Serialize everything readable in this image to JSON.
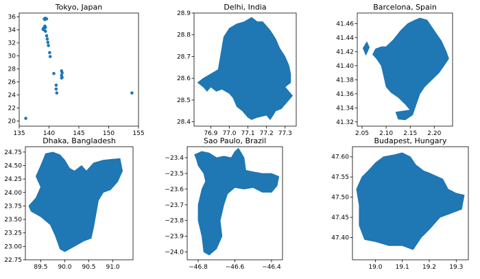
{
  "figure": {
    "colors": {
      "fill": "#1f77b4",
      "axes": "#000000",
      "background": "#ffffff"
    },
    "panels": [
      {
        "title": "Tokyo, Japan",
        "type": "scatter",
        "xlim": [
          135,
          155
        ],
        "ylim": [
          19.2,
          36.6
        ],
        "xticks": [
          135,
          140,
          145,
          150,
          155
        ],
        "yticks": [
          20,
          22,
          24,
          26,
          28,
          30,
          32,
          34,
          36
        ],
        "points": [
          [
            139.2,
            35.7
          ],
          [
            139.4,
            35.8
          ],
          [
            139.6,
            35.7
          ],
          [
            139.3,
            35.6
          ],
          [
            139.1,
            34.3
          ],
          [
            139.2,
            34.0
          ],
          [
            139.3,
            34.6
          ],
          [
            139.0,
            34.1
          ],
          [
            139.4,
            34.4
          ],
          [
            139.4,
            33.8
          ],
          [
            139.6,
            33.1
          ],
          [
            139.7,
            32.6
          ],
          [
            139.8,
            32.1
          ],
          [
            139.9,
            31.6
          ],
          [
            140.1,
            30.5
          ],
          [
            140.2,
            29.9
          ],
          [
            140.8,
            27.3
          ],
          [
            141.2,
            25.5
          ],
          [
            141.2,
            24.9
          ],
          [
            141.3,
            24.3
          ],
          [
            142.1,
            27.7
          ],
          [
            142.2,
            27.4
          ],
          [
            142.1,
            27.0
          ],
          [
            142.2,
            26.7
          ],
          [
            142.1,
            26.6
          ],
          [
            153.9,
            24.3
          ],
          [
            136.1,
            20.4
          ]
        ]
      },
      {
        "title": "Delhi, India",
        "type": "map",
        "xlim": [
          76.81,
          77.36
        ],
        "ylim": [
          28.38,
          28.9
        ],
        "xticks": [
          76.9,
          77.0,
          77.1,
          77.2,
          77.3
        ],
        "yticks": [
          28.4,
          28.5,
          28.6,
          28.7,
          28.8,
          28.9
        ],
        "polygons": [
          [
            [
              76.83,
              28.58
            ],
            [
              76.86,
              28.56
            ],
            [
              76.88,
              28.54
            ],
            [
              76.9,
              28.56
            ],
            [
              76.93,
              28.54
            ],
            [
              76.96,
              28.55
            ],
            [
              77.0,
              28.53
            ],
            [
              77.02,
              28.51
            ],
            [
              77.04,
              28.47
            ],
            [
              77.07,
              28.45
            ],
            [
              77.1,
              28.42
            ],
            [
              77.12,
              28.41
            ],
            [
              77.15,
              28.42
            ],
            [
              77.2,
              28.43
            ],
            [
              77.22,
              28.41
            ],
            [
              77.25,
              28.45
            ],
            [
              77.28,
              28.46
            ],
            [
              77.3,
              28.48
            ],
            [
              77.34,
              28.52
            ],
            [
              77.3,
              28.56
            ],
            [
              77.33,
              28.58
            ],
            [
              77.33,
              28.62
            ],
            [
              77.32,
              28.66
            ],
            [
              77.3,
              28.7
            ],
            [
              77.27,
              28.74
            ],
            [
              77.25,
              28.78
            ],
            [
              77.22,
              28.82
            ],
            [
              77.18,
              28.86
            ],
            [
              77.15,
              28.86
            ],
            [
              77.12,
              28.88
            ],
            [
              77.08,
              28.86
            ],
            [
              77.04,
              28.85
            ],
            [
              77.0,
              28.83
            ],
            [
              76.97,
              28.79
            ],
            [
              76.96,
              28.74
            ],
            [
              76.95,
              28.69
            ],
            [
              76.94,
              28.64
            ],
            [
              76.9,
              28.62
            ],
            [
              76.86,
              28.6
            ]
          ]
        ]
      },
      {
        "title": "Barcelona, Spain",
        "type": "map",
        "xlim": [
          2.04,
          2.238
        ],
        "ylim": [
          41.314,
          41.475
        ],
        "xticks": [
          2.05,
          2.1,
          2.15,
          2.2
        ],
        "yticks": [
          41.32,
          41.34,
          41.36,
          41.38,
          41.4,
          41.42,
          41.44,
          41.46
        ],
        "polygons": [
          [
            [
              2.072,
              41.416
            ],
            [
              2.078,
              41.424
            ],
            [
              2.09,
              41.427
            ],
            [
              2.1,
              41.427
            ],
            [
              2.115,
              41.437
            ],
            [
              2.13,
              41.45
            ],
            [
              2.145,
              41.46
            ],
            [
              2.16,
              41.465
            ],
            [
              2.17,
              41.468
            ],
            [
              2.185,
              41.465
            ],
            [
              2.195,
              41.455
            ],
            [
              2.205,
              41.445
            ],
            [
              2.215,
              41.435
            ],
            [
              2.225,
              41.42
            ],
            [
              2.23,
              41.41
            ],
            [
              2.22,
              41.4
            ],
            [
              2.21,
              41.39
            ],
            [
              2.195,
              41.38
            ],
            [
              2.18,
              41.37
            ],
            [
              2.17,
              41.36
            ],
            [
              2.16,
              41.34
            ],
            [
              2.155,
              41.33
            ],
            [
              2.14,
              41.323
            ],
            [
              2.125,
              41.324
            ],
            [
              2.12,
              41.334
            ],
            [
              2.15,
              41.337
            ],
            [
              2.14,
              41.345
            ],
            [
              2.125,
              41.355
            ],
            [
              2.11,
              41.362
            ],
            [
              2.1,
              41.37
            ],
            [
              2.095,
              41.385
            ],
            [
              2.09,
              41.4
            ],
            [
              2.08,
              41.41
            ]
          ],
          [
            [
              2.052,
              41.425
            ],
            [
              2.06,
              41.434
            ],
            [
              2.065,
              41.426
            ],
            [
              2.058,
              41.415
            ]
          ]
        ]
      },
      {
        "title": "Dhaka, Bangladesh",
        "type": "map",
        "xlim": [
          89.18,
          91.42
        ],
        "ylim": [
          22.75,
          24.85
        ],
        "xticks": [
          89.5,
          90.0,
          90.5,
          91.0
        ],
        "yticks": [
          22.75,
          23.0,
          23.25,
          23.5,
          23.75,
          24.0,
          24.25,
          24.5,
          24.75
        ],
        "polygons": [
          [
            [
              89.6,
              24.72
            ],
            [
              89.75,
              24.75
            ],
            [
              89.9,
              24.7
            ],
            [
              90.0,
              24.6
            ],
            [
              90.1,
              24.45
            ],
            [
              90.2,
              24.4
            ],
            [
              90.35,
              24.5
            ],
            [
              90.45,
              24.4
            ],
            [
              90.6,
              24.55
            ],
            [
              90.8,
              24.6
            ],
            [
              91.0,
              24.62
            ],
            [
              91.15,
              24.63
            ],
            [
              91.2,
              24.4
            ],
            [
              91.1,
              24.2
            ],
            [
              90.95,
              24.05
            ],
            [
              90.8,
              24.0
            ],
            [
              90.7,
              23.85
            ],
            [
              90.65,
              23.6
            ],
            [
              90.6,
              23.35
            ],
            [
              90.55,
              23.15
            ],
            [
              90.4,
              23.1
            ],
            [
              90.2,
              23.0
            ],
            [
              90.0,
              22.9
            ],
            [
              89.9,
              22.95
            ],
            [
              89.8,
              23.2
            ],
            [
              89.7,
              23.4
            ],
            [
              89.5,
              23.55
            ],
            [
              89.3,
              23.65
            ],
            [
              89.25,
              23.75
            ],
            [
              89.4,
              23.9
            ],
            [
              89.5,
              24.1
            ],
            [
              89.4,
              24.3
            ],
            [
              89.5,
              24.5
            ]
          ]
        ]
      },
      {
        "title": "Sao Paulo, Brazil",
        "type": "map",
        "xlim": [
          -46.86,
          -46.34
        ],
        "ylim": [
          -24.05,
          -23.33
        ],
        "xticks": [
          -46.8,
          -46.6,
          -46.4
        ],
        "yticks": [
          -23.4,
          -23.5,
          -23.6,
          -23.7,
          -23.8,
          -23.9,
          -24.0
        ],
        "polygons": [
          [
            [
              -46.82,
              -23.38
            ],
            [
              -46.78,
              -23.36
            ],
            [
              -46.74,
              -23.37
            ],
            [
              -46.7,
              -23.4
            ],
            [
              -46.66,
              -23.39
            ],
            [
              -46.62,
              -23.4
            ],
            [
              -46.6,
              -23.36
            ],
            [
              -46.58,
              -23.34
            ],
            [
              -46.55,
              -23.4
            ],
            [
              -46.54,
              -23.48
            ],
            [
              -46.5,
              -23.49
            ],
            [
              -46.45,
              -23.5
            ],
            [
              -46.4,
              -23.5
            ],
            [
              -46.36,
              -23.52
            ],
            [
              -46.37,
              -23.58
            ],
            [
              -46.4,
              -23.62
            ],
            [
              -46.45,
              -23.62
            ],
            [
              -46.5,
              -23.59
            ],
            [
              -46.55,
              -23.6
            ],
            [
              -46.6,
              -23.59
            ],
            [
              -46.64,
              -23.63
            ],
            [
              -46.66,
              -23.7
            ],
            [
              -46.68,
              -23.8
            ],
            [
              -46.67,
              -23.9
            ],
            [
              -46.7,
              -23.98
            ],
            [
              -46.74,
              -24.02
            ],
            [
              -46.77,
              -24.0
            ],
            [
              -46.78,
              -23.9
            ],
            [
              -46.8,
              -23.8
            ],
            [
              -46.8,
              -23.7
            ],
            [
              -46.78,
              -23.6
            ],
            [
              -46.76,
              -23.55
            ],
            [
              -46.77,
              -23.5
            ],
            [
              -46.8,
              -23.45
            ],
            [
              -46.81,
              -23.41
            ]
          ]
        ]
      },
      {
        "title": "Budapest, Hungary",
        "type": "map",
        "xlim": [
          18.915,
          19.345
        ],
        "ylim": [
          47.345,
          47.625
        ],
        "xticks": [
          19.0,
          19.1,
          19.2,
          19.3
        ],
        "yticks": [
          47.4,
          47.45,
          47.5,
          47.55,
          47.6
        ],
        "polygons": [
          [
            [
              18.95,
              47.55
            ],
            [
              18.98,
              47.57
            ],
            [
              19.0,
              47.585
            ],
            [
              19.03,
              47.6
            ],
            [
              19.07,
              47.605
            ],
            [
              19.1,
              47.61
            ],
            [
              19.13,
              47.6
            ],
            [
              19.15,
              47.58
            ],
            [
              19.18,
              47.565
            ],
            [
              19.2,
              47.56
            ],
            [
              19.25,
              47.545
            ],
            [
              19.27,
              47.52
            ],
            [
              19.3,
              47.51
            ],
            [
              19.33,
              47.505
            ],
            [
              19.32,
              47.47
            ],
            [
              19.28,
              47.46
            ],
            [
              19.24,
              47.45
            ],
            [
              19.2,
              47.42
            ],
            [
              19.17,
              47.4
            ],
            [
              19.14,
              47.37
            ],
            [
              19.1,
              47.38
            ],
            [
              19.05,
              47.38
            ],
            [
              19.0,
              47.39
            ],
            [
              18.96,
              47.395
            ],
            [
              18.94,
              47.43
            ],
            [
              18.94,
              47.48
            ],
            [
              18.93,
              47.52
            ]
          ]
        ]
      }
    ]
  }
}
